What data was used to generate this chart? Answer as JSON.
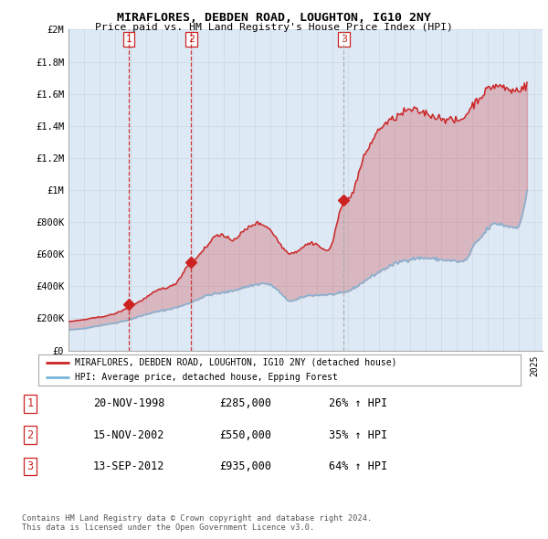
{
  "title_line1": "MIRAFLORES, DEBDEN ROAD, LOUGHTON, IG10 2NY",
  "title_line2": "Price paid vs. HM Land Registry's House Price Index (HPI)",
  "ylabel_ticks": [
    "£0",
    "£200K",
    "£400K",
    "£600K",
    "£800K",
    "£1M",
    "£1.2M",
    "£1.4M",
    "£1.6M",
    "£1.8M",
    "£2M"
  ],
  "ytick_values": [
    0,
    200000,
    400000,
    600000,
    800000,
    1000000,
    1200000,
    1400000,
    1600000,
    1800000,
    2000000
  ],
  "xlim_start": 1995.0,
  "xlim_end": 2025.5,
  "ylim_min": 0,
  "ylim_max": 2000000,
  "hpi_color": "#7ab4d8",
  "price_color": "#cc2222",
  "vline_color_red": "#cc2222",
  "vline_color_gray": "#aaaaaa",
  "dot_color": "#cc2222",
  "grid_color": "#d0dce8",
  "bg_color": "#ffffff",
  "chart_bg_color": "#ddeaf5",
  "sale_dates": [
    1998.89,
    2002.89,
    2012.71
  ],
  "sale_prices": [
    285000,
    550000,
    935000
  ],
  "sale_labels": [
    "1",
    "2",
    "3"
  ],
  "sale_vline_styles": [
    "red",
    "red",
    "gray"
  ],
  "legend_label_red": "MIRAFLORES, DEBDEN ROAD, LOUGHTON, IG10 2NY (detached house)",
  "legend_label_blue": "HPI: Average price, detached house, Epping Forest",
  "table_data": [
    [
      "1",
      "20-NOV-1998",
      "£285,000",
      "26% ↑ HPI"
    ],
    [
      "2",
      "15-NOV-2002",
      "£550,000",
      "35% ↑ HPI"
    ],
    [
      "3",
      "13-SEP-2012",
      "£935,000",
      "64% ↑ HPI"
    ]
  ],
  "footnote": "Contains HM Land Registry data © Crown copyright and database right 2024.\nThis data is licensed under the Open Government Licence v3.0."
}
